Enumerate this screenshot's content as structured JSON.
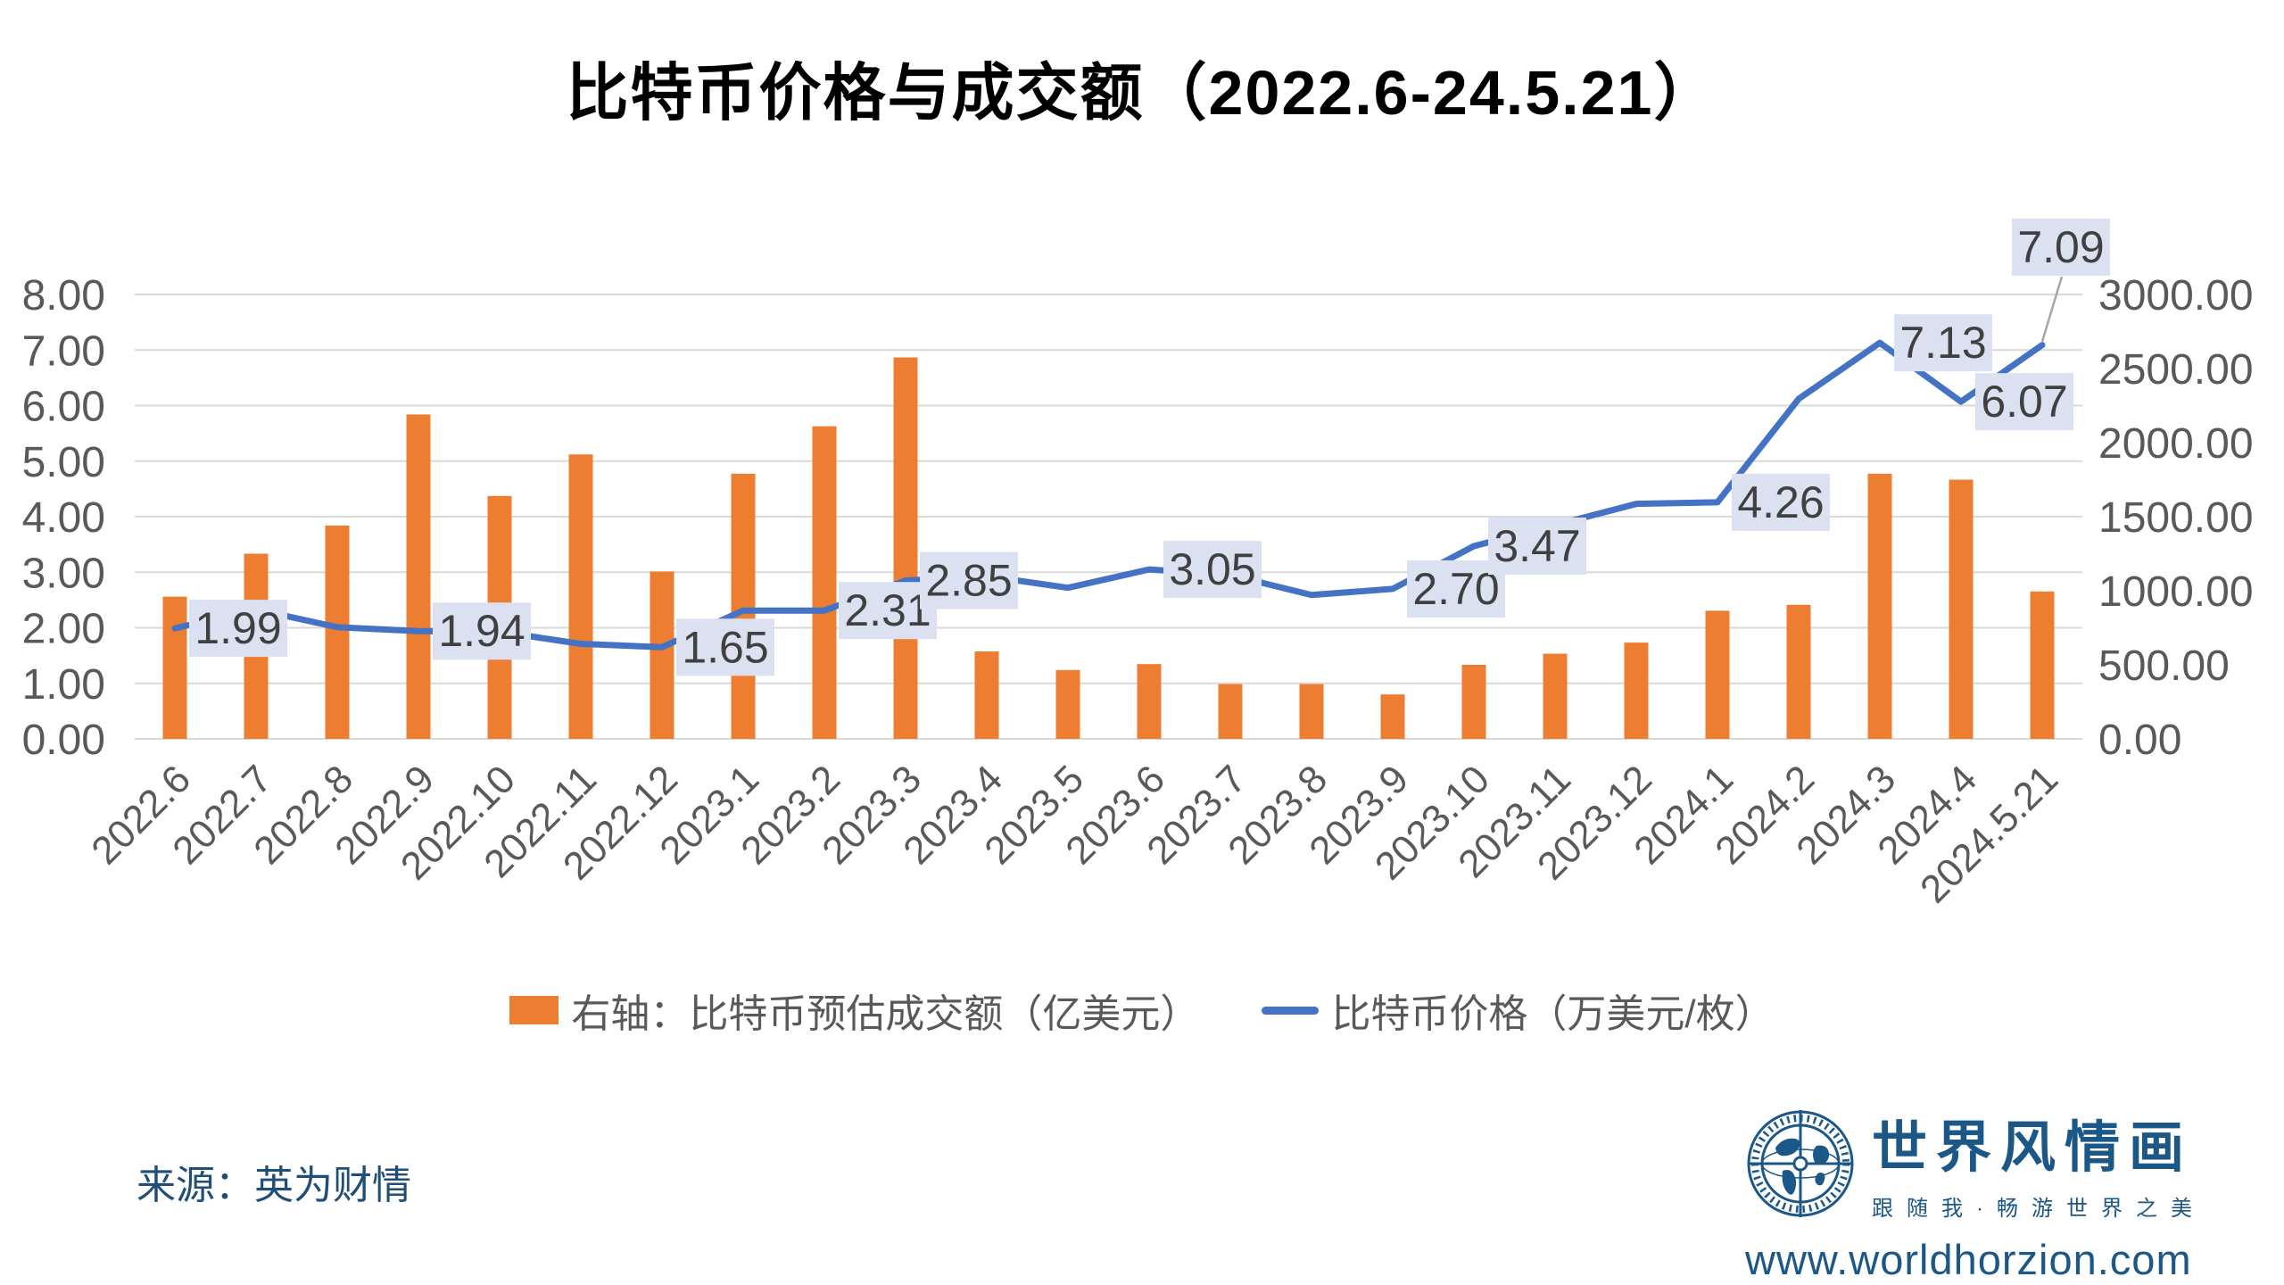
{
  "title": "比特币价格与成交额（2022.6-24.5.21）",
  "source": "来源：英为财情",
  "branding": {
    "logo_icon": "globe-compass-icon",
    "logo_text": "世界风情画",
    "tagline": "跟随我·畅游世界之美",
    "url": "www.worldhorzion.com"
  },
  "colors": {
    "bar": "#ED7D31",
    "line": "#4472C4",
    "label_box": "#DBE1F1",
    "label_text": "#404040",
    "axis_text": "#595959",
    "grid": "#D9D9D9",
    "title_text": "#000000",
    "source_text": "#1F4E79",
    "brand_text": "#1B5787",
    "leader_line": "#A6A6A6",
    "background": "#FFFFFF"
  },
  "chart_data": {
    "type": "combo-bar-line",
    "categories": [
      "2022.6",
      "2022.7",
      "2022.8",
      "2022.9",
      "2022.10",
      "2022.11",
      "2022.12",
      "2023.1",
      "2023.2",
      "2023.3",
      "2023.4",
      "2023.5",
      "2023.6",
      "2023.7",
      "2023.8",
      "2023.9",
      "2023.10",
      "2023.11",
      "2023.12",
      "2024.1",
      "2024.2",
      "2024.3",
      "2024.4",
      "2024.5.21"
    ],
    "series": [
      {
        "name": "右轴：比特币预估成交额（亿美元）",
        "type": "bar",
        "axis": "right",
        "color": "#ED7D31",
        "values": [
          960,
          1250,
          1440,
          2190,
          1640,
          1920,
          1130,
          1790,
          2110,
          2575,
          590,
          465,
          505,
          370,
          370,
          300,
          500,
          575,
          650,
          865,
          905,
          1790,
          1750,
          995
        ]
      },
      {
        "name": "比特币价格（万美元/枚）",
        "type": "line",
        "axis": "left",
        "color": "#4472C4",
        "values": [
          1.99,
          2.33,
          2.01,
          1.94,
          1.93,
          1.71,
          1.65,
          2.31,
          2.31,
          2.85,
          2.93,
          2.72,
          3.05,
          2.95,
          2.59,
          2.7,
          3.47,
          3.85,
          4.23,
          4.26,
          6.12,
          7.13,
          6.07,
          7.09
        ]
      }
    ],
    "point_labels": [
      {
        "index": 0,
        "text": "1.99"
      },
      {
        "index": 3,
        "text": "1.94"
      },
      {
        "index": 6,
        "text": "1.65"
      },
      {
        "index": 8,
        "text": "2.31"
      },
      {
        "index": 9,
        "text": "2.85"
      },
      {
        "index": 12,
        "text": "3.05"
      },
      {
        "index": 15,
        "text": "2.70"
      },
      {
        "index": 16,
        "text": "3.47"
      },
      {
        "index": 19,
        "text": "4.26"
      },
      {
        "index": 21,
        "text": "7.13"
      },
      {
        "index": 22,
        "text": "6.07"
      },
      {
        "index": 23,
        "text": "7.09",
        "callout": true
      }
    ],
    "left_axis": {
      "min": 0,
      "max": 8,
      "step": 1,
      "ticks": [
        "8.00",
        "7.00",
        "6.00",
        "5.00",
        "4.00",
        "3.00",
        "2.00",
        "1.00",
        "0.00"
      ]
    },
    "right_axis": {
      "min": 0,
      "max": 3000,
      "step": 500,
      "ticks": [
        "3000.00",
        "2500.00",
        "2000.00",
        "1500.00",
        "1000.00",
        "500.00",
        "0.00"
      ]
    },
    "grid": true,
    "legend_position": "bottom"
  }
}
